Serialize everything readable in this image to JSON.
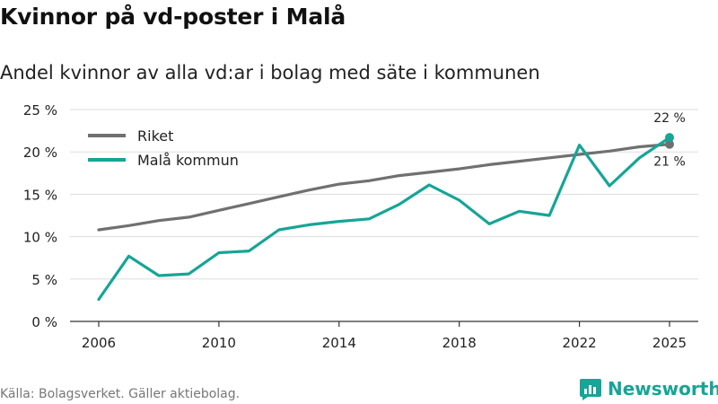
{
  "header": {
    "title": "Kvinnor på vd-poster i Malå",
    "subtitle": "Andel kvinnor av alla vd:ar i bolag med säte i kommunen"
  },
  "footer": {
    "source": "Källa: Bolagsverket. Gäller aktiebolag.",
    "brand": "Newsworthy"
  },
  "colors": {
    "riket": "#707070",
    "mala": "#16a596",
    "grid": "#dddddd",
    "axis": "#333333"
  },
  "chart_data": {
    "type": "line",
    "title": "Kvinnor på vd-poster i Malå",
    "subtitle": "Andel kvinnor av alla vd:ar i bolag med säte i kommunen",
    "xlabel": "",
    "ylabel": "",
    "x": [
      2006,
      2007,
      2008,
      2009,
      2010,
      2011,
      2012,
      2013,
      2014,
      2015,
      2016,
      2017,
      2018,
      2019,
      2020,
      2021,
      2022,
      2023,
      2024,
      2025
    ],
    "xlim": [
      2006,
      2025
    ],
    "xticks": [
      2006,
      2010,
      2014,
      2018,
      2022,
      2025
    ],
    "ylim": [
      0,
      25
    ],
    "yticks": [
      {
        "value": 0,
        "label": "0 %"
      },
      {
        "value": 5,
        "label": "5 %"
      },
      {
        "value": 10,
        "label": "10 %"
      },
      {
        "value": 15,
        "label": "15 %"
      },
      {
        "value": 20,
        "label": "20 %"
      },
      {
        "value": 25,
        "label": "25 %"
      }
    ],
    "grid": true,
    "legend_position": "top-left",
    "series": [
      {
        "name": "Riket",
        "key": "riket",
        "values": [
          10.8,
          11.3,
          11.9,
          12.3,
          13.1,
          13.9,
          14.7,
          15.5,
          16.2,
          16.6,
          17.2,
          17.6,
          18.0,
          18.5,
          18.9,
          19.3,
          19.7,
          20.1,
          20.6,
          20.9
        ],
        "end_label": "21 %",
        "end_label_position": "below"
      },
      {
        "name": "Malå kommun",
        "key": "mala",
        "values": [
          2.6,
          7.7,
          5.4,
          5.6,
          8.1,
          8.3,
          10.8,
          11.4,
          11.8,
          12.1,
          13.8,
          16.1,
          14.3,
          11.5,
          13.0,
          12.5,
          20.8,
          16.0,
          19.3,
          21.7
        ],
        "end_label": "22 %",
        "end_label_position": "above"
      }
    ]
  }
}
